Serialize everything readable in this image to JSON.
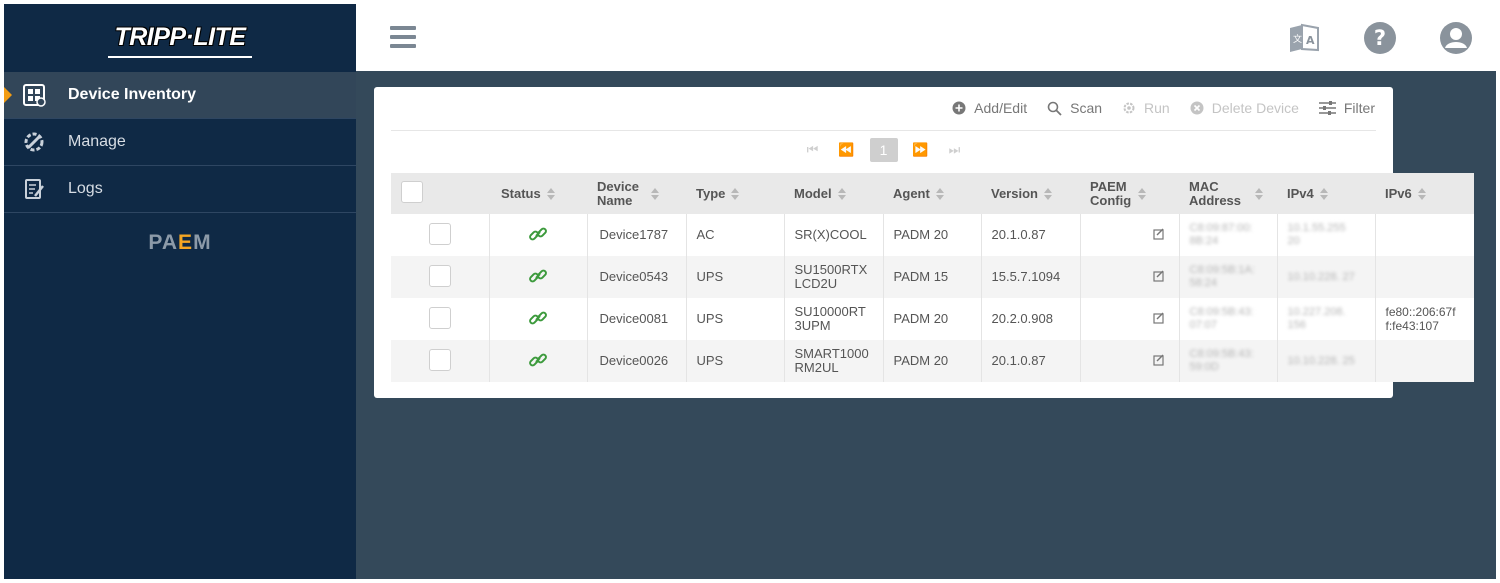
{
  "brand": {
    "logo": "TRIPP·LITE",
    "product_logo_pre": "PA",
    "product_logo_accent": "E",
    "product_logo_post": "M"
  },
  "sidebar": {
    "items": [
      {
        "label": "Device Inventory",
        "icon": "device-inventory-icon",
        "active": true
      },
      {
        "label": "Manage",
        "icon": "wrench-gear-icon",
        "active": false
      },
      {
        "label": "Logs",
        "icon": "log-edit-icon",
        "active": false
      }
    ]
  },
  "header": {
    "icons": [
      "translate-icon",
      "help-icon",
      "user-icon"
    ]
  },
  "toolbar": {
    "add_edit": "Add/Edit",
    "scan": "Scan",
    "run": "Run",
    "delete_device": "Delete Device",
    "filter": "Filter"
  },
  "pagination": {
    "current_page": "1"
  },
  "table": {
    "columns": [
      "Status",
      "Device Name",
      "Type",
      "Model",
      "Agent",
      "Version",
      "PAEM Config",
      "MAC Address",
      "IPv4",
      "IPv6"
    ],
    "rows": [
      {
        "name": "Device1787",
        "type": "AC",
        "model": "SR(X)COOL",
        "agent": "PADM 20",
        "version": "20.1.0.87",
        "mac": "C8:09:87:00: 8B:24",
        "ipv4": "10.1.55.255 20",
        "ipv6": ""
      },
      {
        "name": "Device0543",
        "type": "UPS",
        "model": "SU1500RTX LCD2U",
        "agent": "PADM 15",
        "version": "15.5.7.1094",
        "mac": "C8:09:5B:1A: 58:24",
        "ipv4": "10.10.228. 27",
        "ipv6": ""
      },
      {
        "name": "Device0081",
        "type": "UPS",
        "model": "SU10000RT 3UPM",
        "agent": "PADM 20",
        "version": "20.2.0.908",
        "mac": "C8:09:5B:43: 07:07",
        "ipv4": "10.227.208. 156",
        "ipv6": "fe80::206:67f f:fe43:107"
      },
      {
        "name": "Device0026",
        "type": "UPS",
        "model": "SMART1000 RM2UL",
        "agent": "PADM 20",
        "version": "20.1.0.87",
        "mac": "C8:09:5B:43: 59:0D",
        "ipv4": "10.10.228. 25",
        "ipv6": ""
      }
    ]
  },
  "colors": {
    "sidebar": "#0f2945",
    "background": "#34495a",
    "accent": "#f39c12",
    "link_ok": "#3c9a3c"
  }
}
